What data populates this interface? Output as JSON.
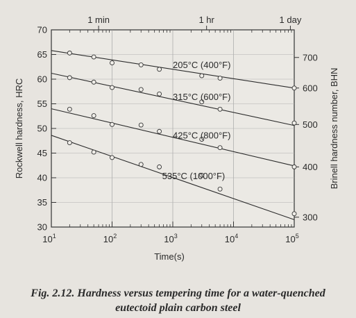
{
  "chart_data": {
    "type": "scatter",
    "xlabel": "Time(s)",
    "ylabel": "Rockwell hardness, HRC",
    "y2label": "Brinell hardness number, BHN",
    "x_scale": "log",
    "xlim": [
      10,
      100000
    ],
    "ylim": [
      30,
      70
    ],
    "x_ticks": [
      {
        "value": 10,
        "base": "10",
        "exp": "1"
      },
      {
        "value": 100,
        "base": "10",
        "exp": "2"
      },
      {
        "value": 1000,
        "base": "10",
        "exp": "3"
      },
      {
        "value": 10000,
        "base": "10",
        "exp": "4"
      },
      {
        "value": 100000,
        "base": "10",
        "exp": "5"
      }
    ],
    "y_ticks": [
      30,
      35,
      40,
      45,
      50,
      55,
      60,
      65,
      70
    ],
    "y2_ticks": [
      {
        "label": "300",
        "hrc": 32
      },
      {
        "label": "400",
        "hrc": 42.2
      },
      {
        "label": "500",
        "hrc": 50.8
      },
      {
        "label": "600",
        "hrc": 58.2
      },
      {
        "label": "700",
        "hrc": 64.4
      }
    ],
    "top_axis": [
      {
        "label": "1 min",
        "seconds": 60
      },
      {
        "label": "1 hr",
        "seconds": 3600
      },
      {
        "label": "1 day",
        "seconds": 86400
      }
    ],
    "series": [
      {
        "name": "205°C (400°F)",
        "line": [
          [
            10,
            65.8
          ],
          [
            100000,
            58.2
          ]
        ],
        "points": [
          [
            20,
            65.3
          ],
          [
            50,
            64.5
          ],
          [
            100,
            63.3
          ],
          [
            300,
            62.9
          ],
          [
            600,
            62.0
          ],
          [
            3000,
            60.7
          ],
          [
            6000,
            60.2
          ],
          [
            100000,
            58.2
          ]
        ]
      },
      {
        "name": "315°C (600°F)",
        "line": [
          [
            10,
            61.2
          ],
          [
            100000,
            50.6
          ]
        ],
        "points": [
          [
            20,
            60.3
          ],
          [
            50,
            59.4
          ],
          [
            100,
            58.3
          ],
          [
            300,
            57.9
          ],
          [
            600,
            57.0
          ],
          [
            3000,
            55.4
          ],
          [
            6000,
            53.9
          ],
          [
            100000,
            51.1
          ]
        ]
      },
      {
        "name": "425°C (800°F)",
        "line": [
          [
            10,
            54.0
          ],
          [
            100000,
            42.4
          ]
        ],
        "points": [
          [
            20,
            53.9
          ],
          [
            50,
            52.6
          ],
          [
            100,
            50.8
          ],
          [
            300,
            50.7
          ],
          [
            600,
            49.4
          ],
          [
            3000,
            47.8
          ],
          [
            6000,
            46.1
          ],
          [
            100000,
            42.2
          ]
        ]
      },
      {
        "name": "535°C (1000°F)",
        "line": [
          [
            10,
            48.6
          ],
          [
            100000,
            31.5
          ]
        ],
        "points": [
          [
            20,
            47.1
          ],
          [
            50,
            45.2
          ],
          [
            100,
            44.1
          ],
          [
            300,
            42.7
          ],
          [
            600,
            42.2
          ],
          [
            3000,
            40.5
          ],
          [
            6000,
            37.7
          ],
          [
            100000,
            32.7
          ]
        ]
      }
    ]
  },
  "caption": {
    "line1": "Fig. 2.12. Hardness versus tempering time for a water-quenched",
    "line2": "eutectoid plain carbon steel"
  }
}
